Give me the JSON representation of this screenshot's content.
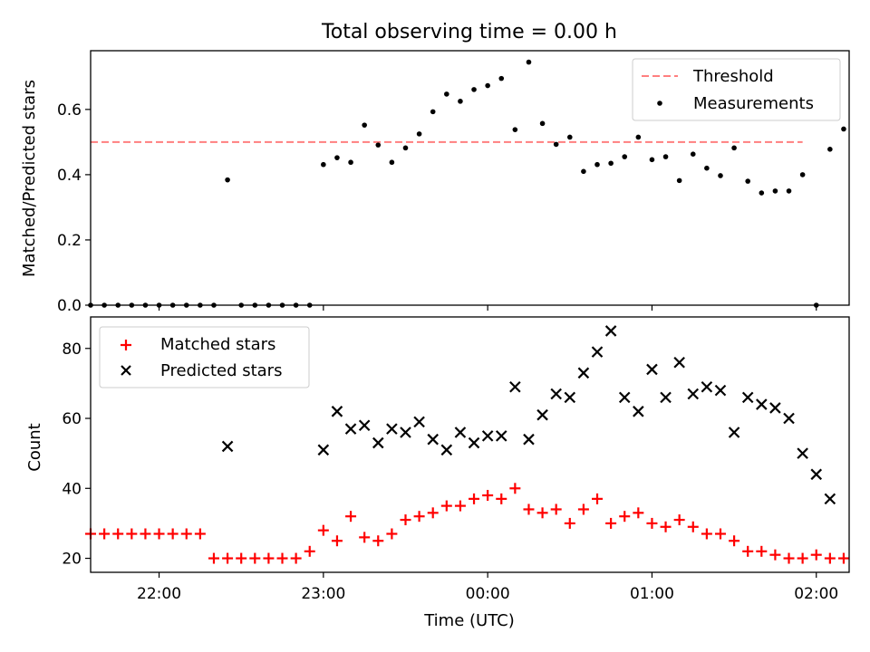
{
  "chart_data": [
    {
      "type": "scatter",
      "title": "Total observing time = 0.00 h",
      "xlabel": "",
      "ylabel": "Matched/Predicted stars",
      "xlim": [
        "21:35",
        "02:12"
      ],
      "ylim": [
        0,
        0.78
      ],
      "yticks": [
        0.0,
        0.2,
        0.4,
        0.6
      ],
      "ytick_labels": [
        "0.0",
        "0.2",
        "0.4",
        "0.6"
      ],
      "xticks": [
        "22:00",
        "23:00",
        "00:00",
        "01:00",
        "02:00"
      ],
      "show_xtick_labels": false,
      "grid": false,
      "legend_position": "top-right",
      "threshold": {
        "name": "Threshold",
        "value": 0.5,
        "x_start": "21:35",
        "x_end": "01:55",
        "color": "#ff7f7f",
        "style": "dashed"
      },
      "series": [
        {
          "name": "Measurements",
          "marker": "dot",
          "color": "#000000",
          "points": [
            [
              "21:35",
              0.0
            ],
            [
              "21:40",
              0.0
            ],
            [
              "21:45",
              0.0
            ],
            [
              "21:50",
              0.0
            ],
            [
              "21:55",
              0.0
            ],
            [
              "22:00",
              0.0
            ],
            [
              "22:05",
              0.0
            ],
            [
              "22:10",
              0.0
            ],
            [
              "22:15",
              0.0
            ],
            [
              "22:20",
              0.0
            ],
            [
              "22:25",
              0.384
            ],
            [
              "22:30",
              0.0
            ],
            [
              "22:35",
              0.0
            ],
            [
              "22:40",
              0.0
            ],
            [
              "22:45",
              0.0
            ],
            [
              "22:50",
              0.0
            ],
            [
              "22:55",
              0.0
            ],
            [
              "23:00",
              0.431
            ],
            [
              "23:05",
              0.452
            ],
            [
              "23:10",
              0.438
            ],
            [
              "23:15",
              0.552
            ],
            [
              "23:20",
              0.491
            ],
            [
              "23:25",
              0.438
            ],
            [
              "23:30",
              0.482
            ],
            [
              "23:35",
              0.525
            ],
            [
              "23:40",
              0.593
            ],
            [
              "23:45",
              0.647
            ],
            [
              "23:50",
              0.625
            ],
            [
              "23:55",
              0.661
            ],
            [
              "00:00",
              0.673
            ],
            [
              "00:05",
              0.695
            ],
            [
              "00:10",
              0.538
            ],
            [
              "00:15",
              0.745
            ],
            [
              "00:20",
              0.557
            ],
            [
              "00:25",
              0.493
            ],
            [
              "00:30",
              0.515
            ],
            [
              "00:35",
              0.41
            ],
            [
              "00:40",
              0.431
            ],
            [
              "00:45",
              0.435
            ],
            [
              "00:50",
              0.455
            ],
            [
              "00:55",
              0.515
            ],
            [
              "01:00",
              0.446
            ],
            [
              "01:05",
              0.455
            ],
            [
              "01:10",
              0.382
            ],
            [
              "01:15",
              0.463
            ],
            [
              "01:20",
              0.42
            ],
            [
              "01:25",
              0.397
            ],
            [
              "01:30",
              0.482
            ],
            [
              "01:35",
              0.38
            ],
            [
              "01:40",
              0.344
            ],
            [
              "01:45",
              0.35
            ],
            [
              "01:50",
              0.35
            ],
            [
              "01:55",
              0.4
            ],
            [
              "02:00",
              0.0
            ],
            [
              "02:05",
              0.478
            ],
            [
              "02:10",
              0.54
            ]
          ]
        }
      ]
    },
    {
      "type": "scatter",
      "title": "",
      "xlabel": "Time (UTC)",
      "ylabel": "Count",
      "xlim": [
        "21:35",
        "02:12"
      ],
      "ylim": [
        16,
        89
      ],
      "yticks": [
        20,
        40,
        60,
        80
      ],
      "ytick_labels": [
        "20",
        "40",
        "60",
        "80"
      ],
      "xticks": [
        "22:00",
        "23:00",
        "00:00",
        "01:00",
        "02:00"
      ],
      "xtick_labels": [
        "22:00",
        "23:00",
        "00:00",
        "01:00",
        "02:00"
      ],
      "grid": false,
      "legend_position": "top-left",
      "series": [
        {
          "name": "Matched stars",
          "marker": "plus",
          "color": "#ff0000",
          "points": [
            [
              "21:35",
              27
            ],
            [
              "21:40",
              27
            ],
            [
              "21:45",
              27
            ],
            [
              "21:50",
              27
            ],
            [
              "21:55",
              27
            ],
            [
              "22:00",
              27
            ],
            [
              "22:05",
              27
            ],
            [
              "22:10",
              27
            ],
            [
              "22:15",
              27
            ],
            [
              "22:20",
              20
            ],
            [
              "22:25",
              20
            ],
            [
              "22:30",
              20
            ],
            [
              "22:35",
              20
            ],
            [
              "22:40",
              20
            ],
            [
              "22:45",
              20
            ],
            [
              "22:50",
              20
            ],
            [
              "22:55",
              22
            ],
            [
              "23:00",
              28
            ],
            [
              "23:05",
              25
            ],
            [
              "23:10",
              32
            ],
            [
              "23:15",
              26
            ],
            [
              "23:20",
              25
            ],
            [
              "23:25",
              27
            ],
            [
              "23:30",
              31
            ],
            [
              "23:35",
              32
            ],
            [
              "23:40",
              33
            ],
            [
              "23:45",
              35
            ],
            [
              "23:50",
              35
            ],
            [
              "23:55",
              37
            ],
            [
              "00:00",
              38
            ],
            [
              "00:05",
              37
            ],
            [
              "00:10",
              40
            ],
            [
              "00:15",
              34
            ],
            [
              "00:20",
              33
            ],
            [
              "00:25",
              34
            ],
            [
              "00:30",
              30
            ],
            [
              "00:35",
              34
            ],
            [
              "00:40",
              37
            ],
            [
              "00:45",
              30
            ],
            [
              "00:50",
              32
            ],
            [
              "00:55",
              33
            ],
            [
              "01:00",
              30
            ],
            [
              "01:05",
              29
            ],
            [
              "01:10",
              31
            ],
            [
              "01:15",
              29
            ],
            [
              "01:20",
              27
            ],
            [
              "01:25",
              27
            ],
            [
              "01:30",
              25
            ],
            [
              "01:35",
              22
            ],
            [
              "01:40",
              22
            ],
            [
              "01:45",
              21
            ],
            [
              "01:50",
              20
            ],
            [
              "01:55",
              20
            ],
            [
              "02:00",
              21
            ],
            [
              "02:05",
              20
            ],
            [
              "02:10",
              20
            ]
          ]
        },
        {
          "name": "Predicted stars",
          "marker": "cross",
          "color": "#000000",
          "points": [
            [
              "22:25",
              52
            ],
            [
              "23:00",
              51
            ],
            [
              "23:05",
              62
            ],
            [
              "23:10",
              57
            ],
            [
              "23:15",
              58
            ],
            [
              "23:20",
              53
            ],
            [
              "23:25",
              57
            ],
            [
              "23:30",
              56
            ],
            [
              "23:35",
              59
            ],
            [
              "23:40",
              54
            ],
            [
              "23:45",
              51
            ],
            [
              "23:50",
              56
            ],
            [
              "23:55",
              53
            ],
            [
              "00:00",
              55
            ],
            [
              "00:05",
              55
            ],
            [
              "00:10",
              69
            ],
            [
              "00:15",
              54
            ],
            [
              "00:20",
              61
            ],
            [
              "00:25",
              67
            ],
            [
              "00:30",
              66
            ],
            [
              "00:35",
              73
            ],
            [
              "00:40",
              79
            ],
            [
              "00:45",
              85
            ],
            [
              "00:50",
              66
            ],
            [
              "00:55",
              62
            ],
            [
              "01:00",
              74
            ],
            [
              "01:05",
              66
            ],
            [
              "01:10",
              76
            ],
            [
              "01:15",
              67
            ],
            [
              "01:20",
              69
            ],
            [
              "01:25",
              68
            ],
            [
              "01:30",
              56
            ],
            [
              "01:35",
              66
            ],
            [
              "01:40",
              64
            ],
            [
              "01:45",
              63
            ],
            [
              "01:50",
              60
            ],
            [
              "01:55",
              50
            ],
            [
              "02:00",
              44
            ],
            [
              "02:05",
              37
            ]
          ]
        }
      ]
    }
  ]
}
